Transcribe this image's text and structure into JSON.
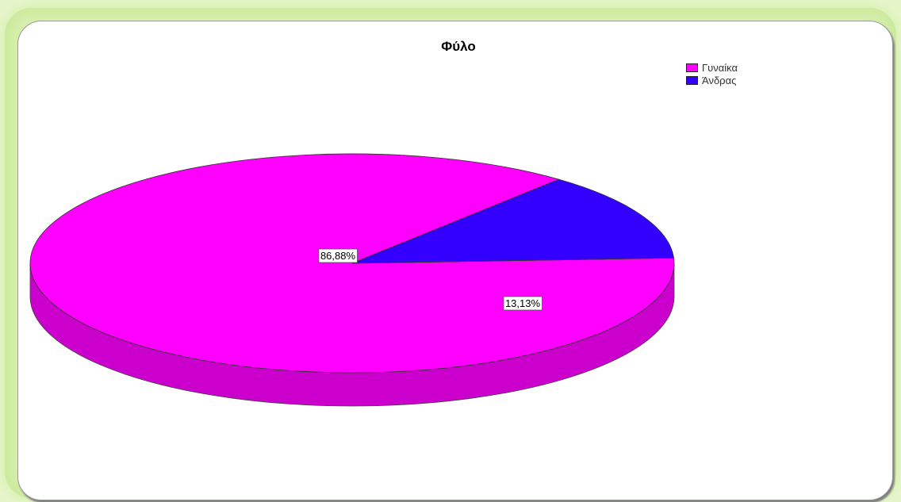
{
  "chart_data": {
    "type": "pie",
    "title": "Φύλο",
    "slices": [
      {
        "label": "Γυναίκα",
        "value": 86.88,
        "display": "86,88%",
        "color": "#ff00ff"
      },
      {
        "label": "Άνδρας",
        "value": 13.13,
        "display": "13,13%",
        "color": "#3300ff"
      }
    ],
    "legend_position": "top-right",
    "style": "3d"
  }
}
